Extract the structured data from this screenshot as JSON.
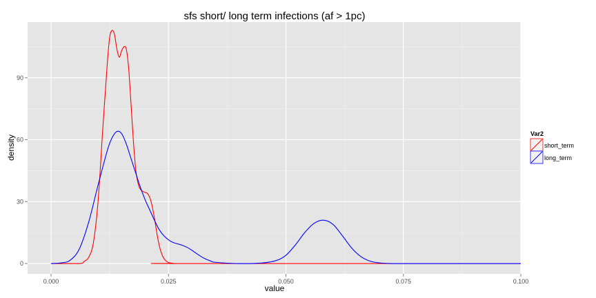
{
  "chart_data": {
    "type": "line",
    "title": "sfs  short/ long term infections (af > 1pc)",
    "xlabel": "value",
    "ylabel": "density",
    "xlim": [
      -0.005,
      0.1
    ],
    "ylim": [
      -5,
      117
    ],
    "x_ticks": [
      0.0,
      0.025,
      0.05,
      0.075,
      0.1
    ],
    "x_tick_labels": [
      "0.000",
      "0.025",
      "0.050",
      "0.075",
      "0.100"
    ],
    "y_ticks": [
      0,
      30,
      60,
      90
    ],
    "y_tick_labels": [
      "0",
      "30",
      "60",
      "90"
    ],
    "grid": true,
    "legend": {
      "title": "Var2",
      "placement": "right",
      "entries": [
        "short_term",
        "long_term"
      ]
    },
    "series": [
      {
        "name": "short_term",
        "color": "#ff0000",
        "x": [
          0.0,
          0.006,
          0.007,
          0.008,
          0.009,
          0.01,
          0.011,
          0.012,
          0.0125,
          0.013,
          0.0135,
          0.014,
          0.0145,
          0.015,
          0.0155,
          0.016,
          0.0165,
          0.017,
          0.0175,
          0.018,
          0.0185,
          0.019,
          0.0195,
          0.02,
          0.0205,
          0.021,
          0.0215,
          0.022,
          0.0225,
          0.023,
          0.0235,
          0.024,
          0.0245,
          0.025,
          0.026,
          0.027,
          0.1
        ],
        "y": [
          0,
          0,
          1,
          3,
          10,
          30,
          65,
          98,
          110,
          113,
          111,
          104,
          100,
          103,
          105,
          104,
          95,
          78,
          60,
          46,
          39,
          36,
          35,
          34.5,
          34,
          32,
          28,
          22,
          15,
          9,
          5,
          2.5,
          1.2,
          0.5,
          0.1,
          0,
          0
        ]
      },
      {
        "name": "long_term",
        "color": "#0000ff",
        "x": [
          0.0,
          0.002,
          0.004,
          0.006,
          0.008,
          0.01,
          0.012,
          0.013,
          0.014,
          0.015,
          0.016,
          0.017,
          0.018,
          0.019,
          0.02,
          0.021,
          0.022,
          0.023,
          0.024,
          0.025,
          0.026,
          0.027,
          0.028,
          0.029,
          0.03,
          0.031,
          0.032,
          0.033,
          0.034,
          0.035,
          0.04,
          0.045,
          0.048,
          0.05,
          0.052,
          0.054,
          0.056,
          0.058,
          0.06,
          0.062,
          0.064,
          0.066,
          0.068,
          0.07,
          0.072,
          0.075,
          0.1
        ],
        "y": [
          0,
          0.3,
          1.5,
          7,
          20,
          38,
          55,
          61,
          64,
          63,
          58,
          51,
          44,
          37,
          31,
          26,
          21,
          16.5,
          13.5,
          11.5,
          10.2,
          9.5,
          8.8,
          7.8,
          6.4,
          4.8,
          3.3,
          2.1,
          1.2,
          0.6,
          0,
          0.3,
          1.5,
          4,
          9,
          15,
          19.5,
          21,
          19,
          13.5,
          7.5,
          3.3,
          1.1,
          0.3,
          0.05,
          0,
          0
        ]
      }
    ]
  }
}
